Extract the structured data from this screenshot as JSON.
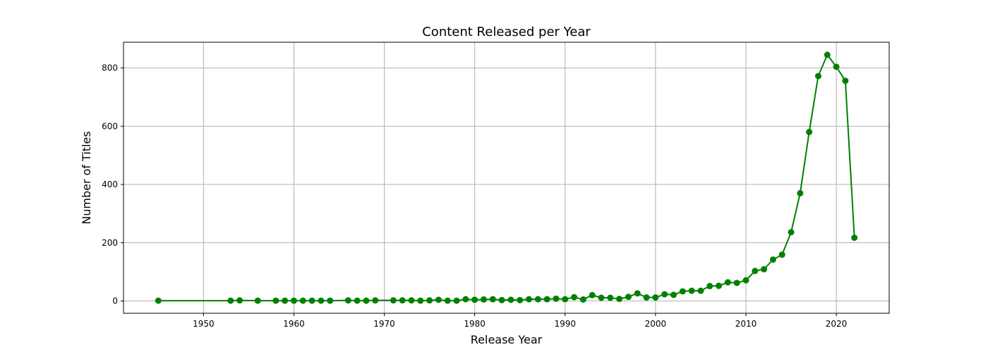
{
  "chart_data": {
    "type": "line",
    "title": "Content Released per Year",
    "xlabel": "Release Year",
    "ylabel": "Number of Titles",
    "xlim": [
      1941.15,
      2025.85
    ],
    "ylim": [
      -42.3,
      888.3
    ],
    "xticks": [
      1950,
      1960,
      1970,
      1980,
      1990,
      2000,
      2010,
      2020
    ],
    "yticks": [
      0,
      200,
      400,
      600,
      800
    ],
    "grid": true,
    "legend": "none",
    "series": [
      {
        "color": "#008000",
        "marker": "circle",
        "x": [
          1945,
          1953,
          1954,
          1956,
          1958,
          1959,
          1960,
          1961,
          1962,
          1963,
          1964,
          1966,
          1967,
          1968,
          1969,
          1971,
          1972,
          1973,
          1974,
          1975,
          1976,
          1977,
          1978,
          1979,
          1980,
          1981,
          1982,
          1983,
          1984,
          1985,
          1986,
          1987,
          1988,
          1989,
          1990,
          1991,
          1992,
          1993,
          1994,
          1995,
          1996,
          1997,
          1998,
          1999,
          2000,
          2001,
          2002,
          2003,
          2004,
          2005,
          2006,
          2007,
          2008,
          2009,
          2010,
          2011,
          2012,
          2013,
          2014,
          2015,
          2016,
          2017,
          2018,
          2019,
          2020,
          2021,
          2022
        ],
        "values": [
          1,
          1,
          2,
          1,
          1,
          1,
          1,
          1,
          1,
          1,
          1,
          2,
          1,
          1,
          2,
          2,
          2,
          2,
          1,
          2,
          4,
          1,
          1,
          6,
          4,
          5,
          6,
          3,
          4,
          3,
          6,
          6,
          6,
          8,
          6,
          13,
          5,
          20,
          11,
          11,
          7,
          14,
          26,
          12,
          12,
          23,
          21,
          33,
          35,
          35,
          51,
          52,
          64,
          62,
          71,
          103,
          109,
          142,
          159,
          236,
          370,
          580,
          772,
          845,
          804,
          756,
          217
        ]
      }
    ]
  }
}
